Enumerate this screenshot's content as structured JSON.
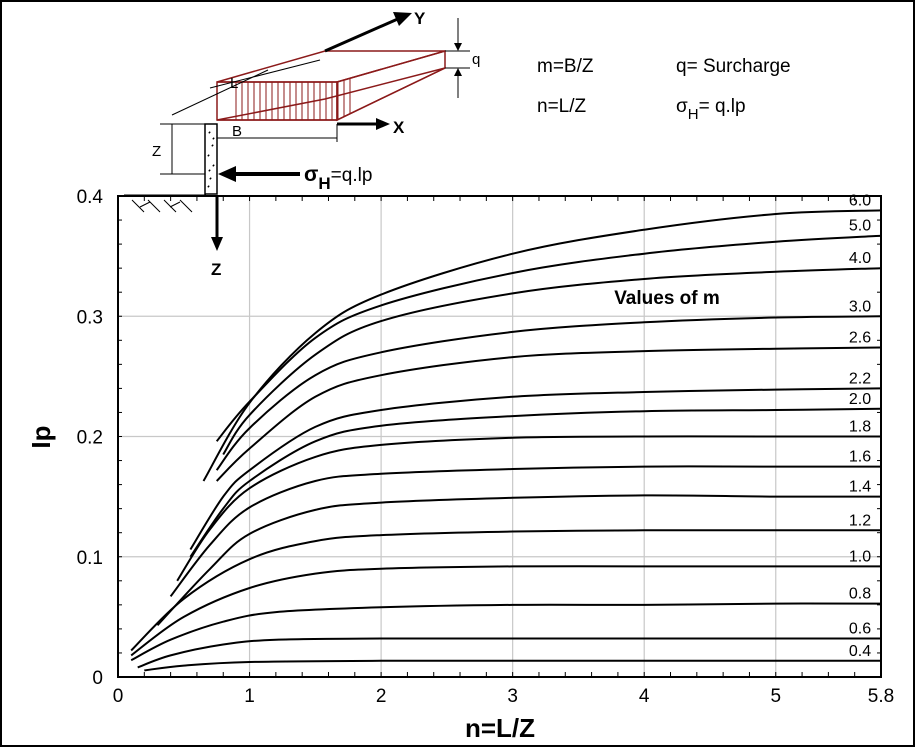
{
  "chart_data": {
    "type": "line",
    "xlabel": "n=L/Z",
    "ylabel": "Ip",
    "xlim": [
      0,
      5.8
    ],
    "ylim": [
      0,
      0.4
    ],
    "x_ticks": [
      "0",
      "1",
      "2",
      "3",
      "4",
      "5",
      "5.8"
    ],
    "y_ticks": [
      "0",
      "0.1",
      "0.2",
      "0.3",
      "0.4"
    ],
    "grid": true,
    "curve_group_label": "Values of m",
    "series": [
      {
        "name": "0.4",
        "points": [
          [
            0.2,
            0.0055
          ],
          [
            0.5,
            0.0095
          ],
          [
            1,
            0.0125
          ],
          [
            2,
            0.0135
          ],
          [
            3,
            0.0135
          ],
          [
            4,
            0.0135
          ],
          [
            5.8,
            0.0135
          ]
        ]
      },
      {
        "name": "0.6",
        "points": [
          [
            0.15,
            0.008
          ],
          [
            0.4,
            0.018
          ],
          [
            0.8,
            0.027
          ],
          [
            1.2,
            0.031
          ],
          [
            2,
            0.032
          ],
          [
            3,
            0.032
          ],
          [
            4,
            0.032
          ],
          [
            5.8,
            0.032
          ]
        ]
      },
      {
        "name": "0.8",
        "points": [
          [
            0.1,
            0.014
          ],
          [
            0.4,
            0.031
          ],
          [
            0.8,
            0.046
          ],
          [
            1.2,
            0.054
          ],
          [
            2,
            0.058
          ],
          [
            3,
            0.06
          ],
          [
            4,
            0.06
          ],
          [
            5,
            0.061
          ],
          [
            5.8,
            0.061
          ]
        ]
      },
      {
        "name": "1.0",
        "points": [
          [
            0.1,
            0.018
          ],
          [
            0.5,
            0.05
          ],
          [
            1,
            0.074
          ],
          [
            1.5,
            0.086
          ],
          [
            2,
            0.09
          ],
          [
            3,
            0.092
          ],
          [
            4,
            0.092
          ],
          [
            5,
            0.092
          ],
          [
            5.8,
            0.092
          ]
        ]
      },
      {
        "name": "1.2",
        "points": [
          [
            0.1,
            0.022
          ],
          [
            0.5,
            0.065
          ],
          [
            1,
            0.098
          ],
          [
            1.5,
            0.113
          ],
          [
            2,
            0.118
          ],
          [
            3,
            0.121
          ],
          [
            4,
            0.122
          ],
          [
            5,
            0.122
          ],
          [
            5.8,
            0.122
          ]
        ]
      },
      {
        "name": "1.4",
        "points": [
          [
            0.3,
            0.043
          ],
          [
            0.7,
            0.09
          ],
          [
            1,
            0.119
          ],
          [
            1.5,
            0.139
          ],
          [
            2,
            0.145
          ],
          [
            3,
            0.149
          ],
          [
            4,
            0.151
          ],
          [
            5,
            0.15
          ],
          [
            5.8,
            0.15
          ]
        ]
      },
      {
        "name": "1.6",
        "points": [
          [
            0.4,
            0.067
          ],
          [
            0.7,
            0.11
          ],
          [
            1,
            0.141
          ],
          [
            1.5,
            0.163
          ],
          [
            2,
            0.169
          ],
          [
            3,
            0.173
          ],
          [
            4,
            0.175
          ],
          [
            5,
            0.175
          ],
          [
            5.8,
            0.175
          ]
        ]
      },
      {
        "name": "1.8",
        "points": [
          [
            0.45,
            0.08
          ],
          [
            0.7,
            0.123
          ],
          [
            1,
            0.157
          ],
          [
            1.5,
            0.183
          ],
          [
            2,
            0.193
          ],
          [
            3,
            0.199
          ],
          [
            4,
            0.2
          ],
          [
            5,
            0.2
          ],
          [
            5.8,
            0.2
          ]
        ]
      },
      {
        "name": "2.0",
        "points": [
          [
            0.55,
            0.1
          ],
          [
            0.8,
            0.14
          ],
          [
            1,
            0.163
          ],
          [
            1.5,
            0.196
          ],
          [
            2,
            0.209
          ],
          [
            3,
            0.217
          ],
          [
            4,
            0.221
          ],
          [
            5,
            0.222
          ],
          [
            5.8,
            0.223
          ]
        ]
      },
      {
        "name": "2.2",
        "points": [
          [
            0.55,
            0.106
          ],
          [
            0.8,
            0.15
          ],
          [
            1,
            0.172
          ],
          [
            1.5,
            0.208
          ],
          [
            2,
            0.222
          ],
          [
            3,
            0.233
          ],
          [
            4,
            0.237
          ],
          [
            5,
            0.239
          ],
          [
            5.8,
            0.24
          ]
        ]
      },
      {
        "name": "2.6",
        "points": [
          [
            0.75,
            0.163
          ],
          [
            1,
            0.19
          ],
          [
            1.5,
            0.233
          ],
          [
            2,
            0.251
          ],
          [
            3,
            0.266
          ],
          [
            4,
            0.271
          ],
          [
            5,
            0.273
          ],
          [
            5.8,
            0.274
          ]
        ]
      },
      {
        "name": "3.0",
        "points": [
          [
            0.75,
            0.172
          ],
          [
            1,
            0.207
          ],
          [
            1.5,
            0.251
          ],
          [
            2,
            0.27
          ],
          [
            3,
            0.287
          ],
          [
            4,
            0.295
          ],
          [
            5,
            0.299
          ],
          [
            5.8,
            0.3
          ]
        ]
      },
      {
        "name": "4.0",
        "points": [
          [
            0.8,
            0.185
          ],
          [
            1,
            0.218
          ],
          [
            1.5,
            0.268
          ],
          [
            2,
            0.296
          ],
          [
            3,
            0.319
          ],
          [
            4,
            0.331
          ],
          [
            5,
            0.337
          ],
          [
            5.8,
            0.34
          ]
        ]
      },
      {
        "name": "5.0",
        "points": [
          [
            0.75,
            0.196
          ],
          [
            1,
            0.229
          ],
          [
            1.5,
            0.282
          ],
          [
            2,
            0.309
          ],
          [
            3,
            0.336
          ],
          [
            4,
            0.352
          ],
          [
            5,
            0.362
          ],
          [
            5.8,
            0.367
          ]
        ]
      },
      {
        "name": "6.0",
        "points": [
          [
            0.65,
            0.163
          ],
          [
            1,
            0.228
          ],
          [
            1.5,
            0.286
          ],
          [
            2,
            0.318
          ],
          [
            3,
            0.352
          ],
          [
            4,
            0.372
          ],
          [
            5,
            0.385
          ],
          [
            5.8,
            0.388
          ]
        ]
      }
    ]
  },
  "definitions": {
    "m": "m=B/Z",
    "n": "n=L/Z",
    "q": "q= Surcharge",
    "sigma_prefix": "σ",
    "sigma_sub": "H",
    "sigma_rest": "= q.lp"
  },
  "sketch": {
    "y_axis": "Y",
    "x_axis": "X",
    "z_axis": "Z",
    "q": "q",
    "L": "L",
    "B": "B",
    "Z": "Z",
    "stress_prefix": "σ",
    "stress_sub": "H",
    "stress_rest": "=q.lp"
  }
}
